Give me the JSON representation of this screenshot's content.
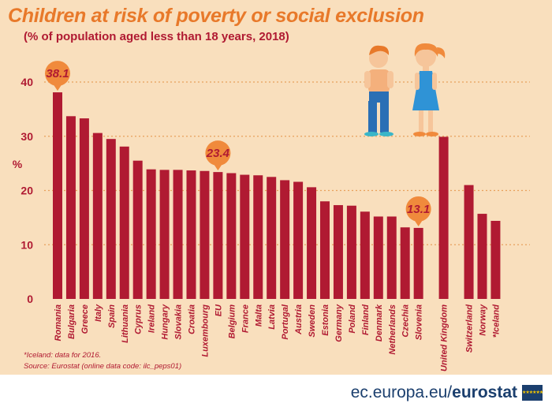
{
  "header": {
    "title": "Children at risk of poverty or social exclusion",
    "subtitle": "(% of population aged less than 18 years, 2018)"
  },
  "notes": {
    "iceland": "*Iceland: data for 2016.",
    "source": "Source: Eurostat (online data code: ilc_peps01)"
  },
  "footer": {
    "domain": "ec.europa.eu/",
    "brand": "eurostat",
    "flag_stars": "★★★★★★"
  },
  "colors": {
    "background": "#f9dfbd",
    "bar": "#b01a32",
    "callout": "#f08a3c",
    "title": "#e8792a",
    "gridline": "#e8a05c"
  },
  "chart_data": {
    "type": "bar",
    "title": "Children at risk of poverty or social exclusion",
    "subtitle": "(% of population aged less than 18 years, 2018)",
    "ylabel": "%",
    "ylim": [
      0,
      40
    ],
    "yticks": [
      0,
      10,
      20,
      30,
      40
    ],
    "grid": true,
    "categories": [
      "Romania",
      "Bulgaria",
      "Greece",
      "Italy",
      "Spain",
      "Lithuania",
      "Cyprus",
      "Ireland",
      "Hungary",
      "Slovakia",
      "Croatia",
      "Luxembourg",
      "EU",
      "Belgium",
      "France",
      "Malta",
      "Latvia",
      "Portugal",
      "Austria",
      "Sweden",
      "Estonia",
      "Germany",
      "Poland",
      "Finland",
      "Denmark",
      "Netherlands",
      "Czechia",
      "Slovenia",
      "United Kingdom",
      "Switzerland",
      "Norway",
      "*Iceland"
    ],
    "values": [
      38.1,
      33.7,
      33.3,
      30.6,
      29.5,
      28.1,
      25.5,
      23.9,
      23.8,
      23.8,
      23.7,
      23.6,
      23.4,
      23.2,
      22.9,
      22.8,
      22.5,
      21.9,
      21.6,
      20.6,
      18.0,
      17.3,
      17.2,
      16.1,
      15.2,
      15.2,
      13.2,
      13.1,
      29.9,
      21.0,
      15.7,
      14.4
    ],
    "callouts": [
      {
        "category": "Romania",
        "label": "38.1"
      },
      {
        "category": "EU",
        "label": "23.4"
      },
      {
        "category": "Slovenia",
        "label": "13.1"
      }
    ]
  }
}
